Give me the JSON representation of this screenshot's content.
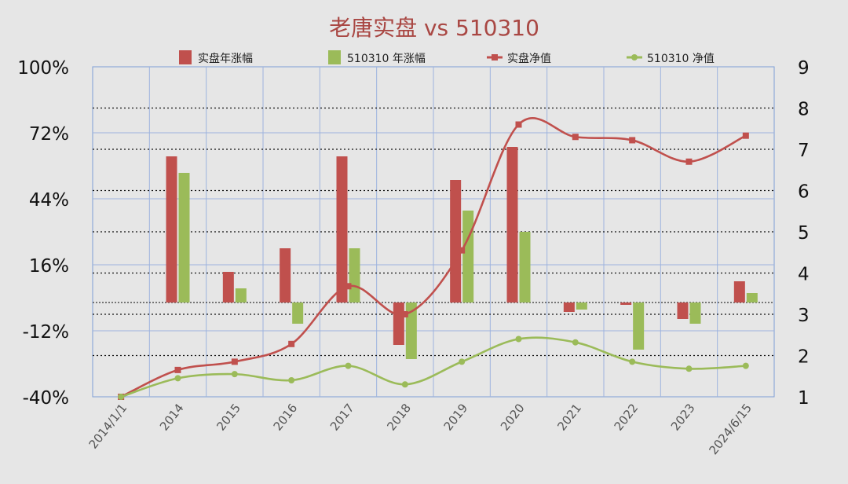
{
  "chart_data": {
    "type": "bar+line",
    "title": "老唐实盘 vs 510310",
    "categories": [
      "2014/1/1",
      "2014",
      "2015",
      "2016",
      "2017",
      "2018",
      "2019",
      "2020",
      "2021",
      "2022",
      "2023",
      "2024/6/15"
    ],
    "left_axis": {
      "ticks": [
        "100%",
        "72%",
        "44%",
        "16%",
        "-12%",
        "-40%"
      ],
      "ylim": [
        -40,
        100
      ]
    },
    "right_axis": {
      "ticks": [
        "9",
        "8",
        "7",
        "6",
        "5",
        "4",
        "3",
        "2",
        "1"
      ],
      "ylim": [
        1,
        9
      ]
    },
    "legend_position": "top",
    "grid": true,
    "series": [
      {
        "name": "实盘年涨幅",
        "kind": "bar",
        "axis": "left",
        "color": "#c0504d",
        "values": [
          null,
          62,
          13,
          23,
          62,
          -18,
          52,
          66,
          -4,
          -1,
          -7,
          9
        ]
      },
      {
        "name": "510310 年涨幅",
        "kind": "bar",
        "axis": "left",
        "color": "#9bbb59",
        "values": [
          null,
          55,
          6,
          -9,
          23,
          -24,
          39,
          30,
          -3,
          -20,
          -9,
          4
        ]
      },
      {
        "name": "实盘净值",
        "kind": "line",
        "axis": "right",
        "color": "#c0504d",
        "values": [
          1,
          1.65,
          1.85,
          2.28,
          3.68,
          3.0,
          4.55,
          7.6,
          7.3,
          7.22,
          6.7,
          7.33
        ]
      },
      {
        "name": "510310 净值",
        "kind": "line",
        "axis": "right",
        "color": "#9bbb59",
        "values": [
          1,
          1.45,
          1.55,
          1.4,
          1.75,
          1.3,
          1.85,
          2.4,
          2.32,
          1.85,
          1.68,
          1.75
        ]
      }
    ]
  }
}
